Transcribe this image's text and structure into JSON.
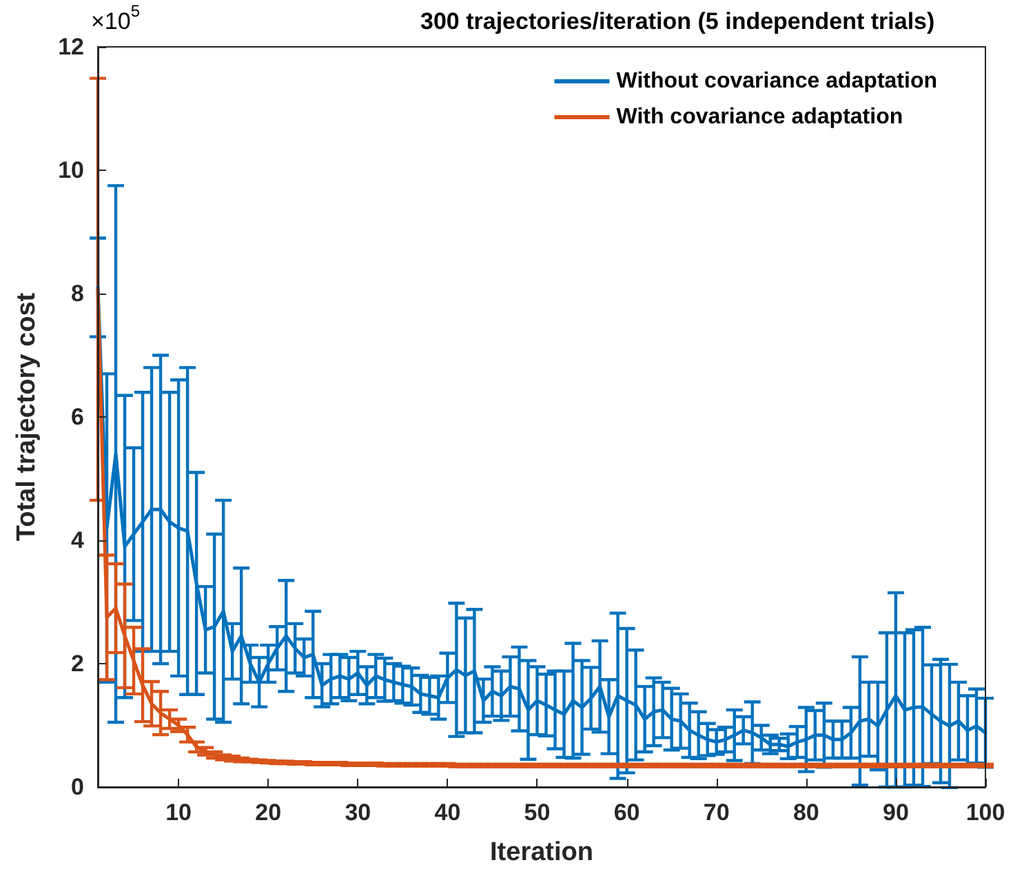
{
  "chart_data": {
    "type": "line",
    "title": "300 trajectories/iteration (5 independent trials)",
    "xlabel": "Iteration",
    "ylabel": "Total trajectory cost",
    "annotations": [
      "×10$^{5}$"
    ],
    "x": [
      1,
      2,
      3,
      4,
      5,
      6,
      7,
      8,
      9,
      10,
      11,
      12,
      13,
      14,
      15,
      16,
      17,
      18,
      19,
      20,
      21,
      22,
      23,
      24,
      25,
      26,
      27,
      28,
      29,
      30,
      31,
      32,
      33,
      34,
      35,
      36,
      37,
      38,
      39,
      40,
      41,
      42,
      43,
      44,
      45,
      46,
      47,
      48,
      49,
      50,
      51,
      52,
      53,
      54,
      55,
      56,
      57,
      58,
      59,
      60,
      61,
      62,
      63,
      64,
      65,
      66,
      67,
      68,
      69,
      70,
      71,
      72,
      73,
      74,
      75,
      76,
      77,
      78,
      79,
      80,
      81,
      82,
      83,
      84,
      85,
      86,
      87,
      88,
      89,
      90,
      91,
      92,
      93,
      94,
      95,
      96,
      97,
      98,
      99,
      100
    ],
    "series": [
      {
        "name": "Without covariance adaptation",
        "color": "#0072bd",
        "values": [
          8.1,
          4.2,
          5.4,
          3.9,
          4.1,
          4.3,
          4.5,
          4.5,
          4.3,
          4.2,
          4.15,
          3.3,
          2.55,
          2.6,
          2.85,
          2.2,
          2.45,
          2.0,
          1.7,
          2.0,
          2.25,
          2.45,
          2.25,
          2.1,
          2.15,
          1.65,
          1.75,
          1.8,
          1.75,
          1.85,
          1.65,
          1.8,
          1.74,
          1.7,
          1.66,
          1.63,
          1.51,
          1.48,
          1.45,
          1.77,
          1.9,
          1.81,
          1.88,
          1.4,
          1.55,
          1.48,
          1.63,
          1.59,
          1.25,
          1.4,
          1.33,
          1.25,
          1.18,
          1.4,
          1.29,
          1.44,
          1.63,
          1.14,
          1.48,
          1.4,
          1.33,
          1.1,
          1.22,
          1.25,
          1.1,
          1.07,
          0.92,
          0.84,
          0.77,
          0.73,
          0.77,
          0.84,
          0.92,
          0.88,
          0.8,
          0.69,
          0.69,
          0.66,
          0.73,
          0.77,
          0.84,
          0.84,
          0.77,
          0.77,
          0.88,
          1.07,
          1.1,
          0.99,
          1.25,
          1.48,
          1.25,
          1.29,
          1.3,
          1.18,
          1.07,
          0.99,
          1.07,
          0.92,
          0.99,
          0.88
        ],
        "errors": [
          0.8,
          2.5,
          4.35,
          2.45,
          1.4,
          2.1,
          2.3,
          2.5,
          2.1,
          2.4,
          2.65,
          1.8,
          0.7,
          1.5,
          1.8,
          0.45,
          1.1,
          0.3,
          0.4,
          0.3,
          0.35,
          0.9,
          0.4,
          0.3,
          0.7,
          0.35,
          0.4,
          0.35,
          0.35,
          0.35,
          0.3,
          0.35,
          0.35,
          0.3,
          0.3,
          0.3,
          0.3,
          0.3,
          0.35,
          0.4,
          1.08,
          0.93,
          1.0,
          0.35,
          0.4,
          0.4,
          0.48,
          0.68,
          0.8,
          0.55,
          0.5,
          0.63,
          0.7,
          0.93,
          0.76,
          0.5,
          0.74,
          0.6,
          1.34,
          1.17,
          0.89,
          0.53,
          0.55,
          0.45,
          0.5,
          0.44,
          0.44,
          0.38,
          0.26,
          0.2,
          0.2,
          0.41,
          0.22,
          0.5,
          0.2,
          0.15,
          0.1,
          0.2,
          0.25,
          0.52,
          0.4,
          0.52,
          0.3,
          0.3,
          0.41,
          1.04,
          0.6,
          0.71,
          1.25,
          [
            0,
            3.15
          ],
          1.25,
          1.26,
          1.29,
          0.8,
          1.0,
          1.0,
          0.63,
          0.56,
          0.6,
          0.56
        ]
      },
      {
        "name": "With covariance adaptation",
        "color": "#d95319",
        "values": [
          8.07,
          2.75,
          2.9,
          2.45,
          2.05,
          1.65,
          1.35,
          1.2,
          1.1,
          1.0,
          0.85,
          0.65,
          0.58,
          0.52,
          0.48,
          0.46,
          0.44,
          0.43,
          0.42,
          0.41,
          0.4,
          0.4,
          0.39,
          0.39,
          0.38,
          0.38,
          0.38,
          0.38,
          0.37,
          0.37,
          0.37,
          0.37,
          0.36,
          0.36,
          0.36,
          0.36,
          0.36,
          0.36,
          0.36,
          0.36,
          0.35,
          0.35,
          0.35,
          0.35,
          0.35,
          0.35,
          0.35,
          0.35,
          0.35,
          0.35,
          0.35,
          0.35,
          0.35,
          0.35,
          0.35,
          0.35,
          0.35,
          0.35,
          0.35,
          0.35,
          0.35,
          0.35,
          0.35,
          0.35,
          0.35,
          0.35,
          0.35,
          0.35,
          0.35,
          0.35,
          0.35,
          0.35,
          0.35,
          0.35,
          0.35,
          0.35,
          0.35,
          0.35,
          0.35,
          0.35,
          0.35,
          0.35,
          0.35,
          0.35,
          0.35,
          0.35,
          0.35,
          0.35,
          0.35,
          0.35,
          0.35,
          0.35,
          0.35,
          0.35,
          0.35,
          0.35,
          0.35,
          0.35,
          0.35,
          0.35
        ],
        "errors": [
          3.42,
          1.01,
          0.72,
          0.84,
          0.54,
          0.59,
          0.36,
          0.35,
          0.15,
          0.1,
          0.12,
          0.08,
          0.06,
          0.05,
          0.04,
          0.04,
          0.03,
          0.02,
          0.02,
          0.02,
          0.02,
          0.02,
          0.02,
          0.02,
          0.02,
          0.02,
          0.02,
          0.02,
          0.02,
          0.02,
          0.02,
          0.02,
          0.02,
          0.02,
          0.02,
          0.02,
          0.02,
          0.02,
          0.02,
          0.02,
          0.02,
          0.02,
          0.02,
          0.02,
          0.02,
          0.02,
          0.02,
          0.02,
          0.02,
          0.02,
          0.02,
          0.02,
          0.02,
          0.02,
          0.02,
          0.02,
          0.02,
          0.02,
          0.02,
          0.02,
          0.02,
          0.02,
          0.02,
          0.02,
          0.02,
          0.02,
          0.02,
          0.02,
          0.02,
          0.02,
          0.02,
          0.02,
          0.02,
          0.02,
          0.02,
          0.02,
          0.02,
          0.02,
          0.02,
          0.02,
          0.02,
          0.02,
          0.02,
          0.02,
          0.02,
          0.02,
          0.02,
          0.02,
          0.02,
          0.02,
          0.02,
          0.02,
          0.02,
          0.02,
          0.02,
          0.02,
          0.02,
          0.02,
          0.02,
          0.02
        ]
      }
    ],
    "xlim": [
      1,
      100
    ],
    "xticks": [
      10,
      20,
      30,
      40,
      50,
      60,
      70,
      80,
      90,
      100
    ],
    "ylim": [
      0,
      12
    ],
    "yticks": [
      0,
      2,
      4,
      6,
      8,
      10,
      12
    ],
    "grid": false,
    "legend": "top right",
    "marker": "none",
    "line_style": "solid"
  }
}
